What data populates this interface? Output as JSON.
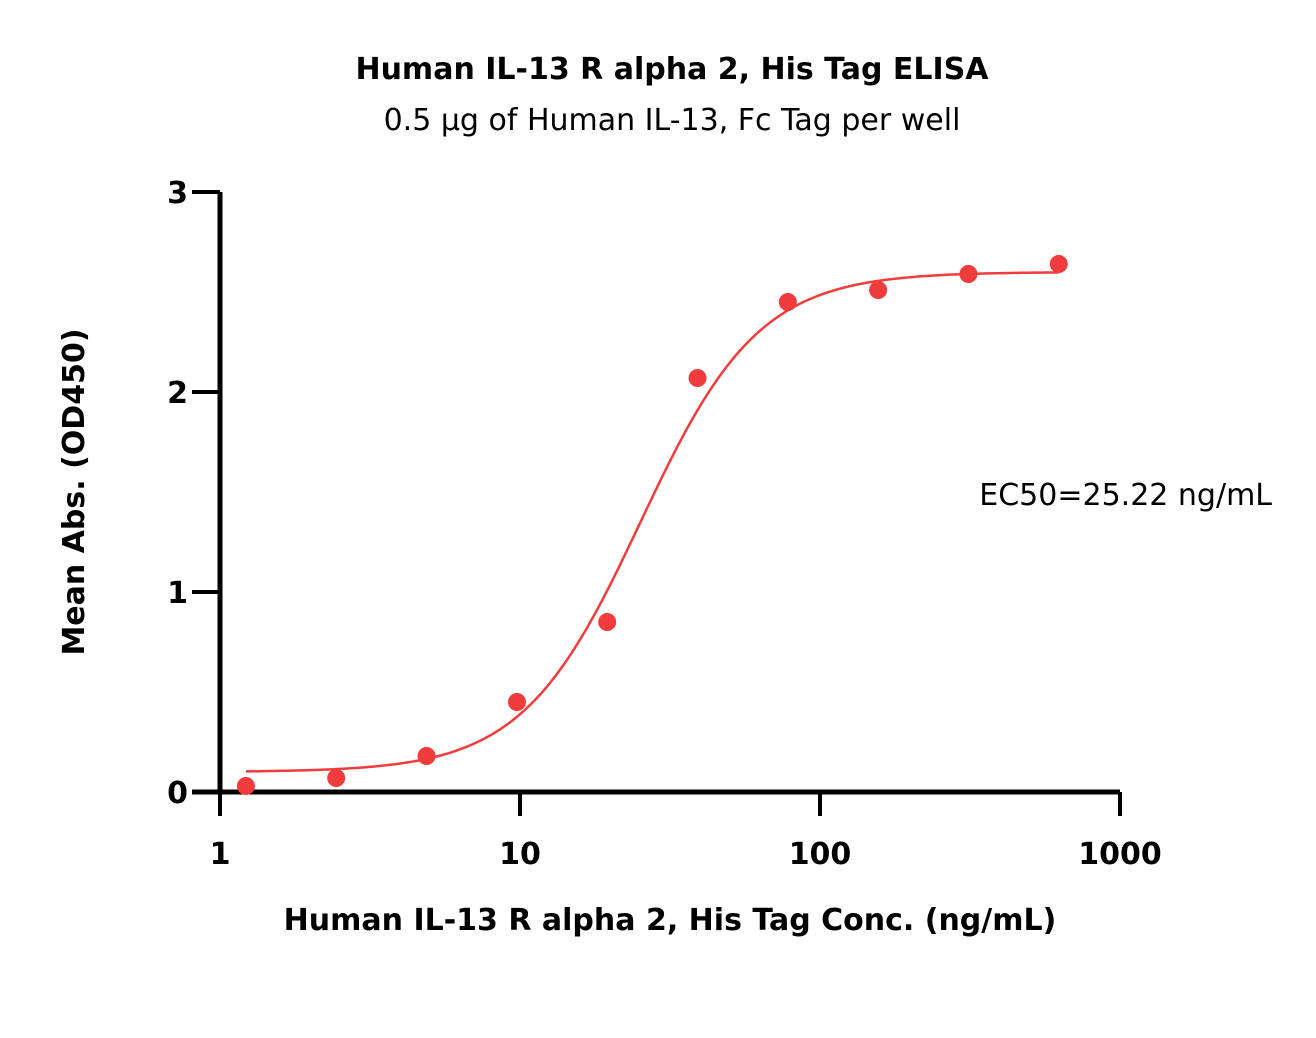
{
  "chart_data": {
    "type": "scatter",
    "title": "Human IL-13 R alpha 2, His Tag ELISA",
    "subtitle": "0.5 μg of Human IL-13, Fc Tag per well",
    "xlabel": "Human IL-13 R alpha 2, His Tag Conc. (ng/mL)",
    "ylabel": "Mean Abs. (OD450)",
    "x_scale": "log",
    "xlim": [
      1,
      1000
    ],
    "ylim": [
      0,
      3
    ],
    "x_ticks": [
      "1",
      "10",
      "100",
      "1000"
    ],
    "y_ticks": [
      "0",
      "1",
      "2",
      "3"
    ],
    "grid": false,
    "annotation": "EC50=25.22 ng/mL",
    "color": "#f03c3c",
    "series": [
      {
        "type": "scatter",
        "x": [
          1.22,
          2.44,
          4.88,
          9.77,
          19.53,
          39.06,
          78.13,
          156.25,
          312.5,
          625
        ],
        "y": [
          0.03,
          0.07,
          0.18,
          0.45,
          0.85,
          2.07,
          2.45,
          2.51,
          2.59,
          2.64
        ]
      }
    ],
    "fit": {
      "type": "4PL",
      "bottom": 0.1,
      "top": 2.6,
      "ec50": 25.22,
      "hill": 2.2,
      "x_range": [
        1.22,
        625
      ]
    }
  }
}
